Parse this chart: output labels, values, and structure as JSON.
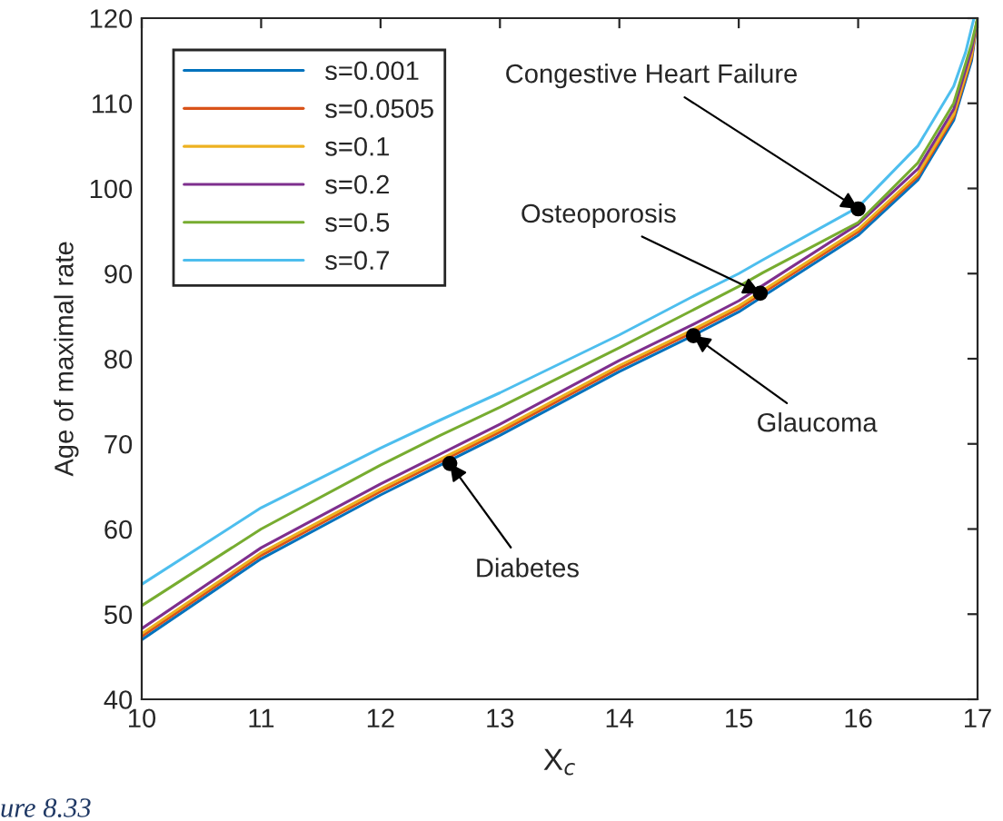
{
  "chart_data": {
    "type": "line",
    "xlabel": "X$_{c}$",
    "ylabel": "Age of maximal rate",
    "xlim": [
      10,
      17
    ],
    "ylim": [
      40,
      120
    ],
    "xticks": [
      10,
      11,
      12,
      13,
      14,
      15,
      16,
      17
    ],
    "yticks": [
      40,
      50,
      60,
      70,
      80,
      90,
      100,
      110,
      120
    ],
    "grid": false,
    "legend": "top left",
    "marker": "none",
    "line_style": "solid",
    "series": [
      {
        "name": "s=0.001",
        "color": "#0072bd",
        "x": [
          10,
          11,
          12,
          12.5,
          13,
          14,
          14.6,
          15,
          15.2,
          16,
          16.5,
          16.8,
          16.95,
          17
        ],
        "values": [
          47,
          56.5,
          64,
          67.5,
          71,
          78.5,
          82.6,
          85.5,
          87.3,
          94.5,
          101,
          108,
          115,
          120
        ]
      },
      {
        "name": "s=0.0505",
        "color": "#d95319",
        "x": [
          10,
          11,
          12,
          12.5,
          13,
          14,
          14.6,
          15,
          15.2,
          16,
          16.5,
          16.8,
          16.95,
          17
        ],
        "values": [
          47.4,
          56.9,
          64.4,
          67.9,
          71.4,
          78.9,
          83,
          85.9,
          87.7,
          94.9,
          101.4,
          108.4,
          115.4,
          120
        ]
      },
      {
        "name": "s=0.1",
        "color": "#edb120",
        "x": [
          10,
          11,
          12,
          12.5,
          13,
          14,
          14.6,
          15,
          15.2,
          16,
          16.5,
          16.8,
          16.95,
          17
        ],
        "values": [
          47.7,
          57.2,
          64.7,
          68.2,
          71.7,
          79.2,
          83.3,
          86.2,
          88,
          95.2,
          101.7,
          108.7,
          115.7,
          120
        ]
      },
      {
        "name": "s=0.2",
        "color": "#7e2f8e",
        "x": [
          10,
          11,
          12,
          12.5,
          13,
          14,
          14.6,
          15,
          15.2,
          16,
          16.5,
          16.8,
          16.95,
          17
        ],
        "values": [
          48.3,
          57.8,
          65.3,
          68.8,
          72.3,
          79.8,
          83.9,
          86.8,
          88.6,
          95.8,
          102.3,
          109.3,
          116.3,
          120
        ]
      },
      {
        "name": "s=0.5",
        "color": "#77ac30",
        "x": [
          10,
          11,
          12,
          12.5,
          13,
          14,
          14.6,
          15,
          15.2,
          16,
          16.5,
          16.8,
          16.95,
          17
        ],
        "values": [
          51,
          60,
          67.5,
          71,
          74.3,
          81.3,
          85.6,
          88.5,
          90.1,
          96,
          103,
          110,
          117,
          120
        ]
      },
      {
        "name": "s=0.7",
        "color": "#4dbeee",
        "x": [
          10,
          11,
          12,
          12.5,
          13,
          14,
          14.6,
          15,
          15.2,
          16,
          16.5,
          16.8,
          16.9,
          16.97
        ],
        "values": [
          53.5,
          62.5,
          69.5,
          72.8,
          76,
          82.8,
          87.2,
          90,
          91.6,
          97.8,
          105,
          112,
          116,
          120
        ]
      },
      {
        "type": "scatter",
        "color": "#000000",
        "marker": "circle",
        "x": [
          12.58,
          14.62,
          15.18,
          16.0
        ],
        "values": [
          67.7,
          82.7,
          87.7,
          97.6
        ]
      }
    ],
    "annotations": [
      {
        "text": "Diabetes",
        "x": 12.58,
        "y": 67.7
      },
      {
        "text": "Glaucoma",
        "x": 14.62,
        "y": 82.7
      },
      {
        "text": "Osteoporosis",
        "x": 15.18,
        "y": 87.7
      },
      {
        "text": "Congestive Heart Failure",
        "x": 16.0,
        "y": 97.6
      },
      "ure 8.33"
    ]
  }
}
